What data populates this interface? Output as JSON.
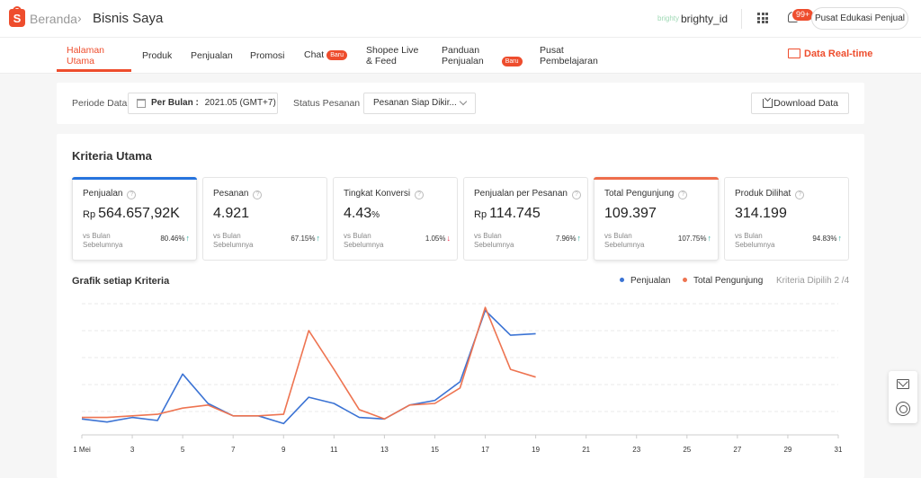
{
  "header": {
    "home": "Beranda",
    "separator": "›",
    "current": "Bisnis Saya",
    "user": "brighty_id",
    "user_icon_text": "brighty",
    "notif_count": "99+",
    "edu_button": "Pusat Edukasi Penjual"
  },
  "nav": {
    "items": [
      {
        "label": "Halaman\nUtama",
        "line1": "Halaman",
        "line2": "Utama",
        "active": true
      },
      {
        "label": "Produk"
      },
      {
        "label": "Penjualan"
      },
      {
        "label": "Promosi"
      },
      {
        "label": "Chat",
        "badge": "Baru"
      },
      {
        "line1": "Shopee Live",
        "line2": "& Feed"
      },
      {
        "line1": "Panduan",
        "line2": "Penjualan",
        "badge": "Baru"
      },
      {
        "line1": "Pusat",
        "line2": "Pembelajaran"
      }
    ],
    "realtime": "Data Real-time"
  },
  "filter": {
    "period_label": "Periode Data",
    "period_prefix": "Per Bulan :",
    "period_value": "2021.05 (GMT+7)",
    "status_label": "Status Pesanan",
    "status_value": "Pesanan Siap Dikir...",
    "download": "Download Data"
  },
  "panel": {
    "title": "Kriteria Utama",
    "compare_label_1": "vs Bulan",
    "compare_label_2": "Sebelumnya",
    "cards": [
      {
        "name": "Penjualan",
        "currency": "Rp",
        "value": "564.657,92K",
        "pct": "80.46%",
        "dir": "up",
        "selected": true,
        "accent": "#2673dd"
      },
      {
        "name": "Pesanan",
        "value": "4.921",
        "pct": "67.15%",
        "dir": "up"
      },
      {
        "name": "Tingkat Konversi",
        "value": "4.43",
        "unit": "%",
        "pct": "1.05%",
        "dir": "down"
      },
      {
        "name": "Penjualan per Pesanan",
        "currency": "Rp",
        "value": "114.745",
        "pct": "7.96%",
        "dir": "up"
      },
      {
        "name": "Total Pengunjung",
        "value": "109.397",
        "pct": "107.75%",
        "dir": "up",
        "selected": true,
        "accent": "#ee6d4b"
      },
      {
        "name": "Produk Dilihat",
        "value": "314.199",
        "pct": "94.83%",
        "dir": "up"
      }
    ],
    "graph_title": "Grafik setiap Kriteria",
    "legend_count": "Kriteria Dipilih 2 /4"
  },
  "colors": {
    "brand": "#ee4d2d",
    "penjualan": "#3b73d4",
    "pengunjung": "#ee7451",
    "up": "#26aa99",
    "down": "#ee2c4a"
  },
  "chart_data": {
    "type": "line",
    "x": [
      1,
      2,
      3,
      4,
      5,
      6,
      7,
      8,
      9,
      10,
      11,
      12,
      13,
      14,
      15,
      16,
      17,
      18,
      19
    ],
    "xticks": [
      "1 Mei",
      "3",
      "5",
      "7",
      "9",
      "11",
      "13",
      "15",
      "17",
      "19",
      "21",
      "23",
      "25",
      "27",
      "29",
      "31"
    ],
    "xlim": [
      1,
      31
    ],
    "ylim": [
      0,
      4
    ],
    "grid": true,
    "legend_position": "top-right",
    "series": [
      {
        "name": "Penjualan",
        "color": "#3b73d4",
        "values": [
          0.05,
          -0.05,
          0.1,
          0.0,
          1.5,
          0.55,
          0.15,
          0.15,
          -0.1,
          0.75,
          0.55,
          0.1,
          0.05,
          0.5,
          0.65,
          1.25,
          3.55,
          2.75,
          2.8
        ]
      },
      {
        "name": "Total Pengunjung",
        "color": "#ee7451",
        "values": [
          0.1,
          0.1,
          0.15,
          0.2,
          0.4,
          0.5,
          0.15,
          0.15,
          0.2,
          2.9,
          1.65,
          0.35,
          0.05,
          0.5,
          0.55,
          1.05,
          3.65,
          1.65,
          1.4
        ]
      }
    ]
  }
}
